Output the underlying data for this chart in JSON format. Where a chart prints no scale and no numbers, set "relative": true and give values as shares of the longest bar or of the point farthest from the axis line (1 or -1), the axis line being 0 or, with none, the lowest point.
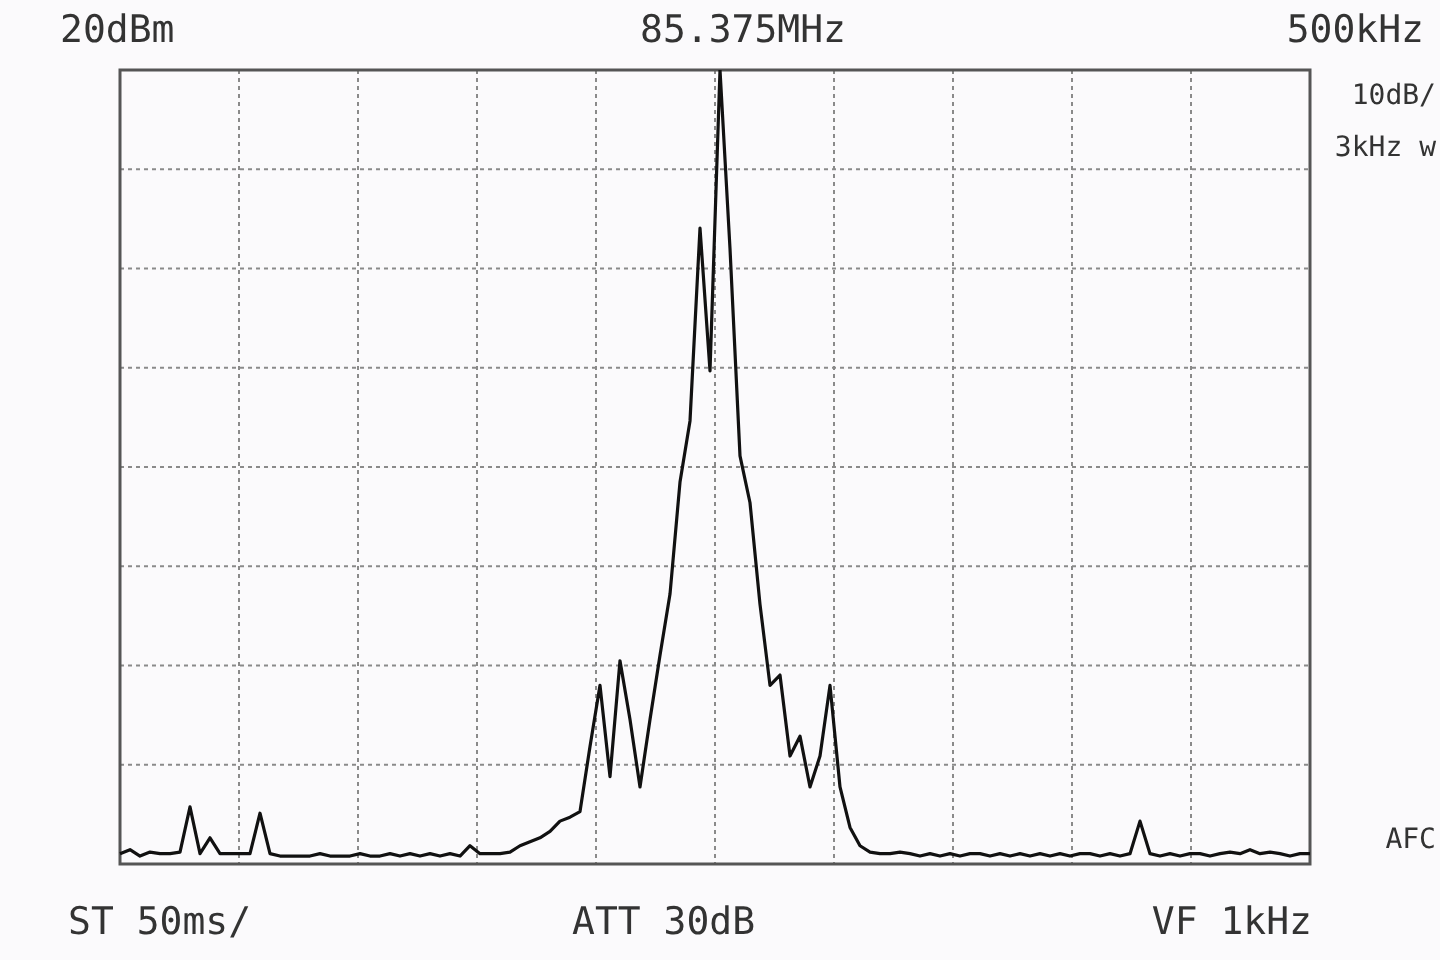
{
  "chart_data": {
    "type": "line",
    "relative": true,
    "grid": true,
    "marker": "none",
    "line_style": "solid",
    "annotations": [
      "20dBm",
      "85.375MHz",
      "500kHz",
      "10dB/",
      "3kHz w",
      "AFC",
      "ST 50ms/",
      "ATT 30dB",
      "VF 1kHz"
    ],
    "categories": [
      null,
      null,
      null,
      null,
      null,
      null,
      null,
      null,
      null,
      null,
      null,
      null,
      null,
      null,
      null,
      null,
      null,
      null,
      null,
      null,
      null,
      null,
      null,
      null,
      null,
      null,
      null,
      null,
      null,
      null,
      null,
      null,
      null,
      null,
      null,
      null,
      null,
      null,
      null,
      null,
      null,
      null,
      null,
      null,
      null,
      null,
      null,
      null,
      null,
      null,
      null,
      null,
      null,
      null,
      null,
      null,
      null,
      null,
      null,
      null,
      null,
      null,
      null,
      null,
      null,
      null,
      null,
      null,
      null,
      null,
      null,
      null,
      null,
      null,
      null,
      null,
      null,
      null,
      null,
      null,
      null,
      null,
      null,
      null,
      null,
      null,
      null,
      null,
      null,
      null,
      null,
      null,
      null,
      null,
      null,
      null,
      null,
      null,
      null,
      null,
      null,
      null,
      null,
      null,
      null,
      null,
      null,
      null,
      null,
      null,
      null,
      null,
      null,
      null,
      null,
      null,
      null,
      null,
      null,
      null
    ],
    "series": [
      {
        "color": "#111111",
        "values": [
          0.013,
          0.018,
          0.01,
          0.015,
          0.013,
          0.013,
          0.015,
          0.072,
          0.013,
          0.033,
          0.013,
          0.013,
          0.013,
          0.013,
          0.064,
          0.013,
          0.01,
          0.01,
          0.01,
          0.01,
          0.013,
          0.01,
          0.01,
          0.01,
          0.013,
          0.01,
          0.01,
          0.013,
          0.01,
          0.013,
          0.01,
          0.013,
          0.01,
          0.013,
          0.01,
          0.023,
          0.013,
          0.013,
          0.013,
          0.015,
          0.023,
          0.028,
          0.033,
          0.041,
          0.054,
          0.059,
          0.066,
          0.148,
          0.225,
          0.11,
          0.256,
          0.182,
          0.097,
          0.182,
          0.263,
          0.34,
          0.481,
          0.558,
          0.801,
          0.621,
          1,
          0.775,
          0.514,
          0.455,
          0.327,
          0.225,
          0.238,
          0.136,
          0.161,
          0.097,
          0.136,
          0.225,
          0.097,
          0.046,
          0.023,
          0.015,
          0.013,
          0.013,
          0.015,
          0.013,
          0.01,
          0.013,
          0.01,
          0.013,
          0.01,
          0.013,
          0.013,
          0.01,
          0.013,
          0.01,
          0.013,
          0.01,
          0.013,
          0.01,
          0.013,
          0.01,
          0.013,
          0.013,
          0.01,
          0.013,
          0.01,
          0.013,
          0.054,
          0.013,
          0.01,
          0.013,
          0.01,
          0.013,
          0.013,
          0.01,
          0.013,
          0.015,
          0.013,
          0.018,
          0.013,
          0.015,
          0.013,
          0.01,
          0.013,
          0.013
        ]
      }
    ]
  }
}
